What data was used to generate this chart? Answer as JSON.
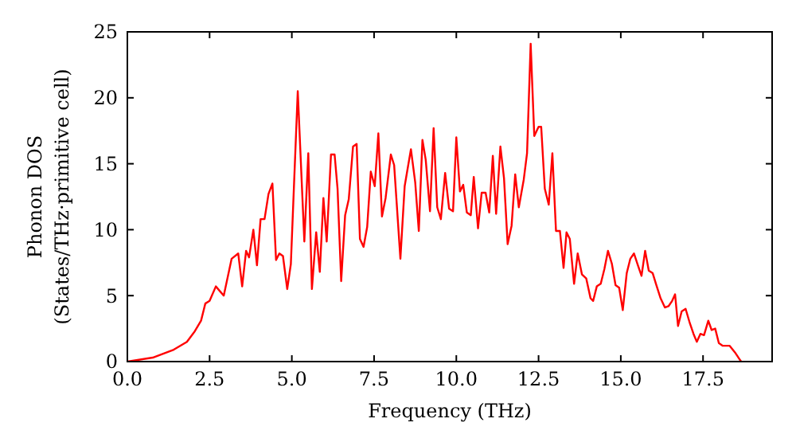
{
  "chart_data": {
    "type": "line",
    "xlabel": "Frequency (THz)",
    "ylabel": "Phonon DOS\n(States/THz·primitive cell)",
    "xlim": [
      0,
      19.6
    ],
    "xticks": [
      {
        "value": 0,
        "label": "0.0"
      },
      {
        "value": 2.5,
        "label": "2.5"
      },
      {
        "value": 5,
        "label": "5.0"
      },
      {
        "value": 7.5,
        "label": "7.5"
      },
      {
        "value": 10,
        "label": "10.0"
      },
      {
        "value": 12.5,
        "label": "12.5"
      },
      {
        "value": 15,
        "label": "15.0"
      },
      {
        "value": 17.5,
        "label": "17.5"
      }
    ],
    "ylim": [
      0,
      25
    ],
    "yticks": [
      0,
      5,
      10,
      15,
      20,
      25
    ],
    "grid": false,
    "marker": "none",
    "line_style": "solid",
    "series": [
      {
        "color": "#ff0000",
        "x": [
          0,
          0.77,
          1.41,
          1.81,
          2.05,
          2.24,
          2.37,
          2.5,
          2.69,
          2.93,
          3.17,
          3.37,
          3.49,
          3.61,
          3.7,
          3.83,
          3.94,
          4.05,
          4.17,
          4.29,
          4.41,
          4.52,
          4.62,
          4.73,
          4.86,
          4.97,
          5.18,
          5.38,
          5.5,
          5.61,
          5.74,
          5.85,
          5.96,
          6.06,
          6.19,
          6.3,
          6.39,
          6.5,
          6.62,
          6.73,
          6.86,
          6.97,
          7.07,
          7.18,
          7.29,
          7.4,
          7.52,
          7.63,
          7.74,
          7.85,
          8.01,
          8.11,
          8.3,
          8.43,
          8.62,
          8.75,
          8.86,
          8.97,
          9.07,
          9.2,
          9.31,
          9.42,
          9.53,
          9.66,
          9.78,
          9.9,
          10.0,
          10.11,
          10.21,
          10.32,
          10.44,
          10.53,
          10.66,
          10.77,
          10.89,
          11.0,
          11.11,
          11.21,
          11.34,
          11.45,
          11.56,
          11.68,
          11.79,
          11.9,
          12.05,
          12.15,
          12.26,
          12.37,
          12.5,
          12.58,
          12.69,
          12.81,
          12.92,
          13.03,
          13.15,
          13.26,
          13.35,
          13.45,
          13.58,
          13.69,
          13.82,
          13.95,
          14.08,
          14.16,
          14.27,
          14.39,
          14.5,
          14.61,
          14.73,
          14.84,
          14.95,
          15.06,
          15.18,
          15.29,
          15.4,
          15.52,
          15.63,
          15.74,
          15.85,
          15.97,
          16.08,
          16.21,
          16.34,
          16.45,
          16.56,
          16.65,
          16.74,
          16.85,
          16.97,
          17.1,
          17.21,
          17.31,
          17.42,
          17.53,
          17.66,
          17.76,
          17.87,
          17.98,
          18.1,
          18.31,
          18.47,
          18.63,
          18.66
        ],
        "values": [
          0,
          0.3,
          0.9,
          1.5,
          2.3,
          3.1,
          4.4,
          4.6,
          5.7,
          5.0,
          7.8,
          8.2,
          5.7,
          8.4,
          7.9,
          10.0,
          7.3,
          10.8,
          10.8,
          12.7,
          13.5,
          7.7,
          8.2,
          8.0,
          5.5,
          7.4,
          20.5,
          9.1,
          15.8,
          5.5,
          9.8,
          6.8,
          12.4,
          9.1,
          15.7,
          15.7,
          13.1,
          6.1,
          11.1,
          12.3,
          16.3,
          16.5,
          9.3,
          8.7,
          10.2,
          14.4,
          13.3,
          17.3,
          11.0,
          12.4,
          15.7,
          14.9,
          7.8,
          13.3,
          16.1,
          13.6,
          9.9,
          16.8,
          15.3,
          11.4,
          17.7,
          11.7,
          10.8,
          14.3,
          11.6,
          11.4,
          17.0,
          12.9,
          13.4,
          11.3,
          11.1,
          14.0,
          10.1,
          12.8,
          12.8,
          11.3,
          15.6,
          11.2,
          16.3,
          13.9,
          8.9,
          10.3,
          14.2,
          11.7,
          13.8,
          15.8,
          24.1,
          17.1,
          17.8,
          17.8,
          13.1,
          11.9,
          15.8,
          9.9,
          9.9,
          7.1,
          9.8,
          9.3,
          5.9,
          8.2,
          6.6,
          6.3,
          4.8,
          4.6,
          5.7,
          5.9,
          7.0,
          8.4,
          7.4,
          5.8,
          5.6,
          3.9,
          6.7,
          7.8,
          8.2,
          7.3,
          6.5,
          8.4,
          6.9,
          6.7,
          5.8,
          4.8,
          4.1,
          4.2,
          4.6,
          5.1,
          2.7,
          3.8,
          4.0,
          2.9,
          2.1,
          1.5,
          2.1,
          2.0,
          3.1,
          2.4,
          2.5,
          1.4,
          1.2,
          1.2,
          0.7,
          0.1,
          0
        ]
      }
    ]
  }
}
